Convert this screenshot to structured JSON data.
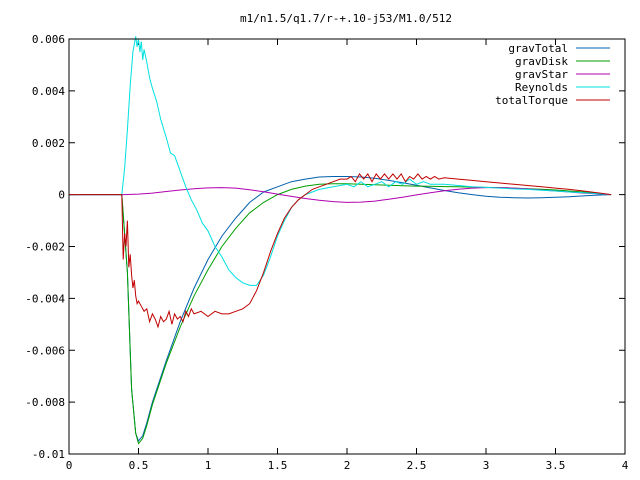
{
  "chart_data": {
    "type": "line",
    "title": "m1/n1.5/q1.7/r-+.10-j53/M1.0/512",
    "xlabel": "",
    "ylabel": "",
    "xlim": [
      0,
      4
    ],
    "ylim": [
      -0.01,
      0.006
    ],
    "x_ticks": [
      0,
      0.5,
      1,
      1.5,
      2,
      2.5,
      3,
      3.5,
      4
    ],
    "x_tick_labels": [
      "0",
      "0.5",
      "1",
      "1.5",
      "2",
      "2.5",
      "3",
      "3.5",
      "4"
    ],
    "y_ticks": [
      -0.01,
      -0.008,
      -0.006,
      -0.004,
      -0.002,
      0,
      0.002,
      0.004,
      0.006
    ],
    "y_tick_labels": [
      "-0.01",
      "-0.008",
      "-0.006",
      "-0.004",
      "-0.002",
      "0",
      "0.002",
      "0.004",
      "0.006"
    ],
    "grid": false,
    "legend_position": "top-right",
    "series": [
      {
        "name": "gravTotal",
        "color": "#0060ad",
        "x": [
          0,
          0.38,
          0.42,
          0.45,
          0.48,
          0.5,
          0.53,
          0.56,
          0.6,
          0.7,
          0.8,
          0.9,
          1.0,
          1.1,
          1.2,
          1.3,
          1.4,
          1.5,
          1.6,
          1.7,
          1.8,
          1.9,
          2.0,
          2.1,
          2.2,
          2.3,
          2.4,
          2.5,
          2.6,
          2.7,
          2.8,
          2.9,
          3.0,
          3.1,
          3.2,
          3.3,
          3.4,
          3.5,
          3.6,
          3.7,
          3.8,
          3.9
        ],
        "y": [
          0,
          0,
          -0.003,
          -0.0075,
          -0.0092,
          -0.0095,
          -0.0093,
          -0.0088,
          -0.008,
          -0.0064,
          -0.0049,
          -0.0036,
          -0.0025,
          -0.0016,
          -0.0009,
          -0.0003,
          0.0001,
          0.0003,
          0.0005,
          0.0006,
          0.00068,
          0.0007,
          0.0007,
          0.00068,
          0.00063,
          0.00055,
          0.00046,
          0.00036,
          0.00026,
          0.00016,
          7e-05,
          0,
          -6e-05,
          -0.0001,
          -0.00012,
          -0.00013,
          -0.00012,
          -0.0001,
          -8e-05,
          -5e-05,
          -2e-05,
          0
        ]
      },
      {
        "name": "gravDisk",
        "color": "#009e00",
        "x": [
          0,
          0.38,
          0.42,
          0.45,
          0.48,
          0.5,
          0.53,
          0.56,
          0.6,
          0.7,
          0.8,
          0.9,
          1.0,
          1.1,
          1.2,
          1.3,
          1.4,
          1.5,
          1.6,
          1.7,
          1.8,
          1.9,
          2.0,
          2.1,
          2.2,
          2.3,
          2.4,
          2.5,
          2.6,
          2.7,
          2.8,
          2.9,
          3.0,
          3.1,
          3.2,
          3.3,
          3.4,
          3.5,
          3.6,
          3.7,
          3.8,
          3.9
        ],
        "y": [
          0,
          0,
          -0.003,
          -0.0075,
          -0.0092,
          -0.0096,
          -0.0094,
          -0.0089,
          -0.0081,
          -0.0065,
          -0.0051,
          -0.0039,
          -0.0029,
          -0.002,
          -0.0013,
          -0.0007,
          -0.0003,
          0,
          0.0002,
          0.00033,
          0.0004,
          0.00042,
          0.00042,
          0.0004,
          0.00038,
          0.00036,
          0.00034,
          0.00033,
          0.00032,
          0.00031,
          0.0003,
          0.00029,
          0.00028,
          0.00027,
          0.00025,
          0.00023,
          0.00021,
          0.00018,
          0.00014,
          0.0001,
          5e-05,
          0
        ]
      },
      {
        "name": "gravStar",
        "color": "#b000b0",
        "x": [
          0,
          0.4,
          0.5,
          0.6,
          0.7,
          0.8,
          0.9,
          1.0,
          1.1,
          1.2,
          1.3,
          1.4,
          1.5,
          1.6,
          1.7,
          1.8,
          1.9,
          2.0,
          2.1,
          2.2,
          2.3,
          2.4,
          2.5,
          2.6,
          2.7,
          2.8,
          2.9,
          3.0,
          3.1,
          3.2,
          3.3,
          3.4,
          3.5,
          3.6,
          3.7,
          3.8,
          3.9
        ],
        "y": [
          0,
          0,
          2e-05,
          6e-05,
          0.00012,
          0.00018,
          0.00023,
          0.00026,
          0.00027,
          0.00025,
          0.00019,
          0.00011,
          2e-05,
          -7e-05,
          -0.00015,
          -0.00022,
          -0.00027,
          -0.0003,
          -0.00029,
          -0.00025,
          -0.00018,
          -0.0001,
          -1e-05,
          7e-05,
          0.00015,
          0.00021,
          0.00025,
          0.00027,
          0.00027,
          0.00025,
          0.00022,
          0.00018,
          0.00014,
          0.0001,
          6e-05,
          3e-05,
          0
        ]
      },
      {
        "name": "Reynolds",
        "color": "#00e0e0",
        "x": [
          0,
          0.38,
          0.4,
          0.42,
          0.44,
          0.46,
          0.47,
          0.48,
          0.49,
          0.5,
          0.51,
          0.52,
          0.53,
          0.54,
          0.56,
          0.58,
          0.6,
          0.63,
          0.66,
          0.7,
          0.73,
          0.76,
          0.8,
          0.84,
          0.88,
          0.92,
          0.96,
          1.0,
          1.05,
          1.1,
          1.15,
          1.2,
          1.25,
          1.3,
          1.35,
          1.4,
          1.45,
          1.5,
          1.55,
          1.6,
          1.65,
          1.7,
          1.75,
          1.8,
          1.85,
          1.9,
          1.95,
          2.0,
          2.05,
          2.1,
          2.15,
          2.2,
          2.25,
          2.3,
          2.35,
          2.4,
          2.45,
          2.5,
          2.55,
          2.6,
          2.7,
          2.8,
          2.9,
          3.0,
          3.1,
          3.2,
          3.3,
          3.4,
          3.5,
          3.6,
          3.7,
          3.8,
          3.9
        ],
        "y": [
          0,
          0,
          0.001,
          0.0025,
          0.0042,
          0.0055,
          0.0058,
          0.0061,
          0.0057,
          0.006,
          0.0055,
          0.0059,
          0.0052,
          0.0056,
          0.0051,
          0.0045,
          0.0041,
          0.0036,
          0.0029,
          0.0022,
          0.0016,
          0.0015,
          0.0009,
          0.0003,
          -0.0002,
          -0.0006,
          -0.0011,
          -0.0014,
          -0.002,
          -0.0024,
          -0.0029,
          -0.0032,
          -0.0034,
          -0.0035,
          -0.0035,
          -0.0031,
          -0.0024,
          -0.0016,
          -0.001,
          -0.0005,
          -0.0002,
          0,
          0.0001,
          0.0002,
          0.00025,
          0.0003,
          0.00035,
          0.0004,
          0.0003,
          0.0005,
          0.0003,
          0.0004,
          0.0005,
          0.0003,
          0.0005,
          0.0004,
          0.0006,
          0.0004,
          0.0005,
          0.0004,
          0.0004,
          0.00035,
          0.0003,
          0.00028,
          0.00025,
          0.00022,
          0.0002,
          0.00017,
          0.00014,
          0.0001,
          7e-05,
          4e-05,
          0
        ]
      },
      {
        "name": "totalTorque",
        "color": "#c00000",
        "x": [
          0,
          0.38,
          0.39,
          0.4,
          0.41,
          0.42,
          0.43,
          0.44,
          0.45,
          0.46,
          0.47,
          0.48,
          0.49,
          0.5,
          0.52,
          0.54,
          0.56,
          0.58,
          0.6,
          0.62,
          0.64,
          0.66,
          0.68,
          0.7,
          0.72,
          0.74,
          0.76,
          0.78,
          0.8,
          0.82,
          0.84,
          0.86,
          0.88,
          0.9,
          0.95,
          1.0,
          1.05,
          1.1,
          1.15,
          1.2,
          1.25,
          1.3,
          1.35,
          1.4,
          1.45,
          1.5,
          1.55,
          1.6,
          1.65,
          1.7,
          1.75,
          1.8,
          1.85,
          1.9,
          1.95,
          2.0,
          2.03,
          2.06,
          2.09,
          2.12,
          2.15,
          2.18,
          2.21,
          2.24,
          2.27,
          2.3,
          2.33,
          2.36,
          2.39,
          2.42,
          2.45,
          2.48,
          2.51,
          2.54,
          2.57,
          2.6,
          2.63,
          2.66,
          2.7,
          2.8,
          2.9,
          3.0,
          3.1,
          3.2,
          3.3,
          3.4,
          3.5,
          3.6,
          3.7,
          3.8,
          3.9
        ],
        "y": [
          0,
          0,
          -0.0025,
          -0.0015,
          -0.002,
          -0.001,
          -0.0028,
          -0.0023,
          -0.0031,
          -0.0036,
          -0.0033,
          -0.0039,
          -0.0042,
          -0.0041,
          -0.0043,
          -0.0045,
          -0.0044,
          -0.0049,
          -0.0046,
          -0.0048,
          -0.0051,
          -0.0047,
          -0.0049,
          -0.0048,
          -0.0045,
          -0.005,
          -0.0046,
          -0.0048,
          -0.0047,
          -0.0049,
          -0.0045,
          -0.0047,
          -0.0044,
          -0.0046,
          -0.0045,
          -0.0047,
          -0.0045,
          -0.0046,
          -0.0046,
          -0.0045,
          -0.0044,
          -0.0042,
          -0.0037,
          -0.003,
          -0.0022,
          -0.0015,
          -0.0009,
          -0.0005,
          -0.0002,
          0,
          0.0002,
          0.0003,
          0.0004,
          0.0005,
          0.0006,
          0.0006,
          0.0007,
          0.0005,
          0.0008,
          0.0006,
          0.0008,
          0.0005,
          0.0008,
          0.0006,
          0.0008,
          0.0006,
          0.0008,
          0.0006,
          0.0008,
          0.0005,
          0.0007,
          0.0006,
          0.0008,
          0.0006,
          0.0007,
          0.0006,
          0.0007,
          0.0006,
          0.00065,
          0.0006,
          0.00055,
          0.0005,
          0.00045,
          0.0004,
          0.00035,
          0.0003,
          0.00025,
          0.0002,
          0.00014,
          7e-05,
          0
        ]
      }
    ]
  }
}
